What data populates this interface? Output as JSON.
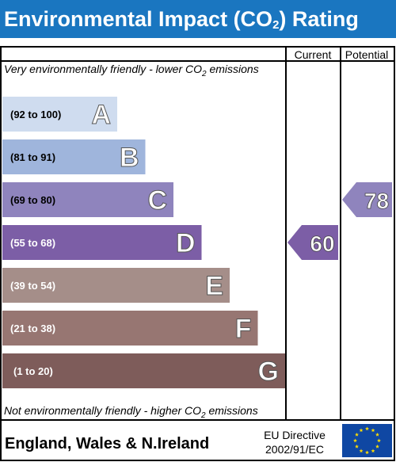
{
  "title": {
    "prefix": "Environmental Impact (CO",
    "sub": "2",
    "suffix": ") Rating"
  },
  "columns": {
    "current": "Current",
    "potential": "Potential"
  },
  "top_note": {
    "prefix": "Very environmentally friendly - lower CO",
    "sub": "2",
    "suffix": " emissions"
  },
  "bottom_note": {
    "prefix": "Not environmentally friendly - higher CO",
    "sub": "2",
    "suffix": " emissions"
  },
  "footer": {
    "region": "England, Wales & N.Ireland",
    "directive_line1": "EU Directive",
    "directive_line2": "2002/91/EC"
  },
  "chart_data": {
    "type": "bar",
    "categories": [
      "A",
      "B",
      "C",
      "D",
      "E",
      "F",
      "G"
    ],
    "ranges": [
      "(92 to 100)",
      "(81 to 91)",
      "(69 to 80)",
      "(55 to 68)",
      "(39 to 54)",
      "(21 to 38)",
      "(1 to 20)"
    ],
    "colors": [
      "#cfdcef",
      "#9fb5dc",
      "#8f84bd",
      "#7c5ea6",
      "#a58e89",
      "#977672",
      "#7e5c5a"
    ],
    "current": {
      "value": 60,
      "band": "D",
      "color": "#7c5ea6"
    },
    "potential": {
      "value": 78,
      "band": "C",
      "color": "#8f84bd"
    }
  }
}
